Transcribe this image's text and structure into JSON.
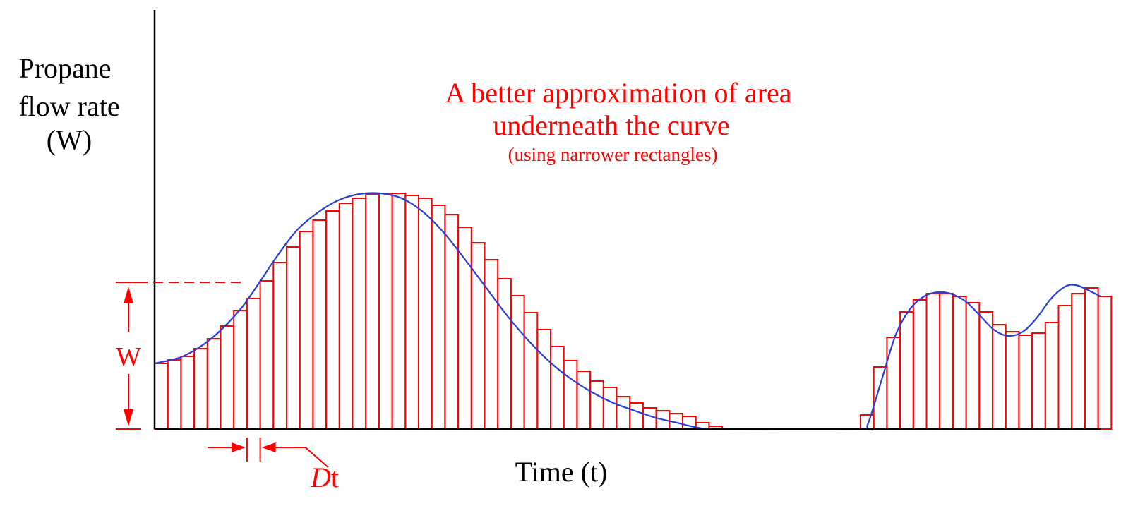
{
  "labels": {
    "y_axis_lines": [
      "Propane",
      "flow rate",
      "(W)"
    ],
    "x_axis": "Time (t)",
    "title_lines": [
      "A better approximation of area",
      "underneath the curve"
    ],
    "subtitle": "(using narrower rectangles)",
    "w_marker": "W",
    "dt_d": "D",
    "dt_t": "t"
  },
  "colors": {
    "axis": "#000000",
    "curve": "#2a3fd6",
    "rectangles": "#ff0000",
    "annotation": "#ff0000"
  },
  "chart_data": {
    "type": "area",
    "title": "A better approximation of area underneath the curve",
    "subtitle": "(using narrower rectangles)",
    "xlabel": "Time (t)",
    "ylabel": "Propane flow rate (W)",
    "xlim": [
      0,
      1340
    ],
    "ylim": [
      0,
      340
    ],
    "grid": false,
    "rectangle_width": 18.7,
    "w_marker_value": 208,
    "dt_marker_index": 7,
    "curve": [
      [
        0,
        93
      ],
      [
        40,
        103
      ],
      [
        80,
        128
      ],
      [
        120,
        168
      ],
      [
        150,
        210
      ],
      [
        170,
        240
      ],
      [
        200,
        280
      ],
      [
        230,
        306
      ],
      [
        260,
        324
      ],
      [
        290,
        333
      ],
      [
        320,
        334
      ],
      [
        350,
        327
      ],
      [
        380,
        308
      ],
      [
        410,
        278
      ],
      [
        440,
        240
      ],
      [
        470,
        200
      ],
      [
        500,
        160
      ],
      [
        530,
        125
      ],
      [
        560,
        95
      ],
      [
        590,
        71
      ],
      [
        620,
        52
      ],
      [
        650,
        37
      ],
      [
        680,
        26
      ],
      [
        710,
        16
      ],
      [
        740,
        9
      ],
      [
        770,
        2
      ],
      [
        800,
        0
      ],
      [
        1000,
        0
      ],
      [
        1010,
        6
      ],
      [
        1030,
        70
      ],
      [
        1050,
        134
      ],
      [
        1070,
        170
      ],
      [
        1090,
        188
      ],
      [
        1110,
        194
      ],
      [
        1130,
        191
      ],
      [
        1150,
        180
      ],
      [
        1170,
        160
      ],
      [
        1190,
        140
      ],
      [
        1210,
        132
      ],
      [
        1230,
        138
      ],
      [
        1250,
        158
      ],
      [
        1270,
        185
      ],
      [
        1290,
        202
      ],
      [
        1305,
        204
      ],
      [
        1320,
        198
      ],
      [
        1340,
        188
      ]
    ],
    "rectangles_left_heights": [
      93,
      98,
      103,
      114,
      128,
      146,
      168,
      185,
      210,
      236,
      258,
      280,
      296,
      309,
      320,
      327,
      333,
      334,
      334,
      331,
      327,
      317,
      304,
      286,
      264,
      240,
      213,
      189,
      165,
      141,
      117,
      97,
      82,
      68,
      59,
      46,
      37,
      30,
      26,
      22,
      18,
      9,
      4
    ],
    "rectangles_right_start": 1000,
    "rectangles_right_heights": [
      20,
      88,
      130,
      166,
      183,
      192,
      192,
      188,
      179,
      166,
      148,
      138,
      133,
      136,
      151,
      175,
      192,
      200,
      188
    ]
  }
}
